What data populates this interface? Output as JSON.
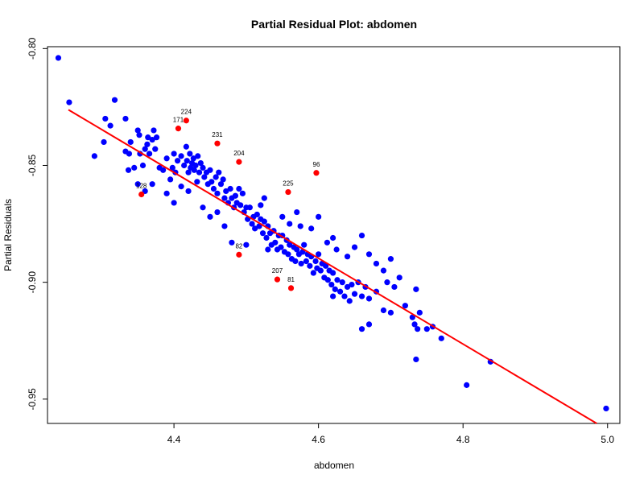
{
  "chart_data": {
    "type": "scatter",
    "title": "Partial Residual Plot: abdomen",
    "xlabel": "abdomen",
    "ylabel": "Partial Residuals",
    "xlim": [
      4.225,
      5.017
    ],
    "ylim": [
      -0.9604,
      -0.7992
    ],
    "x_ticks": [
      4.4,
      4.6,
      4.8,
      5.0
    ],
    "x_tick_labels": [
      "4.4",
      "4.6",
      "4.8",
      "5.0"
    ],
    "y_ticks": [
      -0.95,
      -0.9,
      -0.85,
      -0.8
    ],
    "y_tick_labels": [
      "-0.95",
      "-0.90",
      "-0.85",
      "-0.80"
    ],
    "grid": false,
    "colors": {
      "points": "#0000ff",
      "highlight": "#ff0000",
      "line": "#ff0000"
    },
    "fit_line": {
      "x": [
        4.254,
        4.985
      ],
      "y": [
        -0.8262,
        -0.9604
      ]
    },
    "series": [
      {
        "color": "#0000ff",
        "points": [
          [
            4.24,
            -0.804
          ],
          [
            4.255,
            -0.823
          ],
          [
            4.29,
            -0.846
          ],
          [
            4.303,
            -0.84
          ],
          [
            4.305,
            -0.83
          ],
          [
            4.312,
            -0.833
          ],
          [
            4.318,
            -0.822
          ],
          [
            4.333,
            -0.83
          ],
          [
            4.333,
            -0.844
          ],
          [
            4.337,
            -0.852
          ],
          [
            4.338,
            -0.845
          ],
          [
            4.34,
            -0.84
          ],
          [
            4.345,
            -0.851
          ],
          [
            4.35,
            -0.835
          ],
          [
            4.352,
            -0.837
          ],
          [
            4.353,
            -0.845
          ],
          [
            4.357,
            -0.85
          ],
          [
            4.36,
            -0.843
          ],
          [
            4.363,
            -0.841
          ],
          [
            4.364,
            -0.838
          ],
          [
            4.366,
            -0.845
          ],
          [
            4.37,
            -0.839
          ],
          [
            4.372,
            -0.835
          ],
          [
            4.374,
            -0.843
          ],
          [
            4.376,
            -0.838
          ],
          [
            4.38,
            -0.851
          ],
          [
            4.385,
            -0.852
          ],
          [
            4.39,
            -0.847
          ],
          [
            4.395,
            -0.856
          ],
          [
            4.398,
            -0.851
          ],
          [
            4.4,
            -0.845
          ],
          [
            4.402,
            -0.853
          ],
          [
            4.405,
            -0.848
          ],
          [
            4.41,
            -0.846
          ],
          [
            4.414,
            -0.85
          ],
          [
            4.417,
            -0.842
          ],
          [
            4.418,
            -0.848
          ],
          [
            4.42,
            -0.853
          ],
          [
            4.422,
            -0.845
          ],
          [
            4.423,
            -0.851
          ],
          [
            4.425,
            -0.849
          ],
          [
            4.427,
            -0.847
          ],
          [
            4.428,
            -0.852
          ],
          [
            4.43,
            -0.85
          ],
          [
            4.432,
            -0.857
          ],
          [
            4.433,
            -0.846
          ],
          [
            4.435,
            -0.853
          ],
          [
            4.437,
            -0.849
          ],
          [
            4.44,
            -0.851
          ],
          [
            4.442,
            -0.855
          ],
          [
            4.445,
            -0.853
          ],
          [
            4.447,
            -0.858
          ],
          [
            4.45,
            -0.852
          ],
          [
            4.452,
            -0.857
          ],
          [
            4.455,
            -0.86
          ],
          [
            4.458,
            -0.855
          ],
          [
            4.46,
            -0.862
          ],
          [
            4.462,
            -0.853
          ],
          [
            4.465,
            -0.858
          ],
          [
            4.468,
            -0.856
          ],
          [
            4.47,
            -0.864
          ],
          [
            4.472,
            -0.861
          ],
          [
            4.475,
            -0.866
          ],
          [
            4.478,
            -0.86
          ],
          [
            4.48,
            -0.864
          ],
          [
            4.483,
            -0.868
          ],
          [
            4.485,
            -0.863
          ],
          [
            4.487,
            -0.866
          ],
          [
            4.49,
            -0.86
          ],
          [
            4.492,
            -0.867
          ],
          [
            4.495,
            -0.862
          ],
          [
            4.497,
            -0.87
          ],
          [
            4.5,
            -0.868
          ],
          [
            4.502,
            -0.873
          ],
          [
            4.505,
            -0.868
          ],
          [
            4.508,
            -0.875
          ],
          [
            4.51,
            -0.872
          ],
          [
            4.512,
            -0.877
          ],
          [
            4.515,
            -0.871
          ],
          [
            4.518,
            -0.876
          ],
          [
            4.52,
            -0.873
          ],
          [
            4.523,
            -0.879
          ],
          [
            4.525,
            -0.874
          ],
          [
            4.528,
            -0.881
          ],
          [
            4.53,
            -0.876
          ],
          [
            4.533,
            -0.879
          ],
          [
            4.535,
            -0.884
          ],
          [
            4.538,
            -0.878
          ],
          [
            4.54,
            -0.883
          ],
          [
            4.543,
            -0.886
          ],
          [
            4.545,
            -0.88
          ],
          [
            4.548,
            -0.885
          ],
          [
            4.55,
            -0.88
          ],
          [
            4.553,
            -0.887
          ],
          [
            4.556,
            -0.882
          ],
          [
            4.558,
            -0.888
          ],
          [
            4.56,
            -0.884
          ],
          [
            4.563,
            -0.89
          ],
          [
            4.566,
            -0.885
          ],
          [
            4.568,
            -0.891
          ],
          [
            4.57,
            -0.886
          ],
          [
            4.573,
            -0.888
          ],
          [
            4.576,
            -0.892
          ],
          [
            4.578,
            -0.887
          ],
          [
            4.58,
            -0.884
          ],
          [
            4.583,
            -0.891
          ],
          [
            4.585,
            -0.888
          ],
          [
            4.588,
            -0.893
          ],
          [
            4.59,
            -0.889
          ],
          [
            4.593,
            -0.896
          ],
          [
            4.596,
            -0.891
          ],
          [
            4.598,
            -0.894
          ],
          [
            4.6,
            -0.888
          ],
          [
            4.603,
            -0.895
          ],
          [
            4.605,
            -0.892
          ],
          [
            4.608,
            -0.898
          ],
          [
            4.61,
            -0.893
          ],
          [
            4.613,
            -0.899
          ],
          [
            4.615,
            -0.895
          ],
          [
            4.618,
            -0.901
          ],
          [
            4.62,
            -0.896
          ],
          [
            4.623,
            -0.903
          ],
          [
            4.626,
            -0.899
          ],
          [
            4.63,
            -0.904
          ],
          [
            4.633,
            -0.9
          ],
          [
            4.636,
            -0.906
          ],
          [
            4.64,
            -0.902
          ],
          [
            4.643,
            -0.908
          ],
          [
            4.646,
            -0.901
          ],
          [
            4.65,
            -0.905
          ],
          [
            4.655,
            -0.9
          ],
          [
            4.66,
            -0.906
          ],
          [
            4.665,
            -0.902
          ],
          [
            4.67,
            -0.907
          ],
          [
            4.68,
            -0.904
          ],
          [
            4.69,
            -0.912
          ],
          [
            4.695,
            -0.9
          ],
          [
            4.7,
            -0.913
          ],
          [
            4.705,
            -0.902
          ],
          [
            4.712,
            -0.898
          ],
          [
            4.72,
            -0.91
          ],
          [
            4.73,
            -0.915
          ],
          [
            4.733,
            -0.918
          ],
          [
            4.735,
            -0.903
          ],
          [
            4.737,
            -0.92
          ],
          [
            4.74,
            -0.913
          ],
          [
            4.75,
            -0.92
          ],
          [
            4.758,
            -0.919
          ],
          [
            4.77,
            -0.924
          ],
          [
            4.735,
            -0.933
          ],
          [
            4.805,
            -0.944
          ],
          [
            4.838,
            -0.934
          ],
          [
            4.998,
            -0.954
          ],
          [
            4.67,
            -0.918
          ],
          [
            4.66,
            -0.92
          ],
          [
            4.62,
            -0.906
          ],
          [
            4.53,
            -0.886
          ],
          [
            4.46,
            -0.87
          ],
          [
            4.44,
            -0.868
          ],
          [
            4.45,
            -0.872
          ],
          [
            4.47,
            -0.876
          ],
          [
            4.48,
            -0.883
          ],
          [
            4.5,
            -0.884
          ],
          [
            4.42,
            -0.861
          ],
          [
            4.41,
            -0.859
          ],
          [
            4.39,
            -0.862
          ],
          [
            4.4,
            -0.866
          ],
          [
            4.37,
            -0.858
          ],
          [
            4.36,
            -0.861
          ],
          [
            4.35,
            -0.858
          ],
          [
            4.52,
            -0.867
          ],
          [
            4.525,
            -0.864
          ],
          [
            4.55,
            -0.872
          ],
          [
            4.56,
            -0.875
          ],
          [
            4.57,
            -0.87
          ],
          [
            4.575,
            -0.876
          ],
          [
            4.59,
            -0.877
          ],
          [
            4.6,
            -0.872
          ],
          [
            4.612,
            -0.883
          ],
          [
            4.62,
            -0.881
          ],
          [
            4.625,
            -0.886
          ],
          [
            4.64,
            -0.889
          ],
          [
            4.65,
            -0.885
          ],
          [
            4.66,
            -0.88
          ],
          [
            4.67,
            -0.888
          ],
          [
            4.68,
            -0.892
          ],
          [
            4.69,
            -0.895
          ],
          [
            4.7,
            -0.89
          ]
        ]
      },
      {
        "color": "#ff0000",
        "points": [
          [
            4.417,
            -0.8308,
            "224"
          ],
          [
            4.406,
            -0.8342,
            "171"
          ],
          [
            4.46,
            -0.8406,
            "231"
          ],
          [
            4.49,
            -0.8485,
            "204"
          ],
          [
            4.597,
            -0.8532,
            "96"
          ],
          [
            4.558,
            -0.8614,
            "225"
          ],
          [
            4.355,
            -0.8624,
            "128"
          ],
          [
            4.49,
            -0.8882,
            "82"
          ],
          [
            4.543,
            -0.8988,
            "207"
          ],
          [
            4.562,
            -0.9025,
            "81"
          ]
        ]
      }
    ]
  }
}
